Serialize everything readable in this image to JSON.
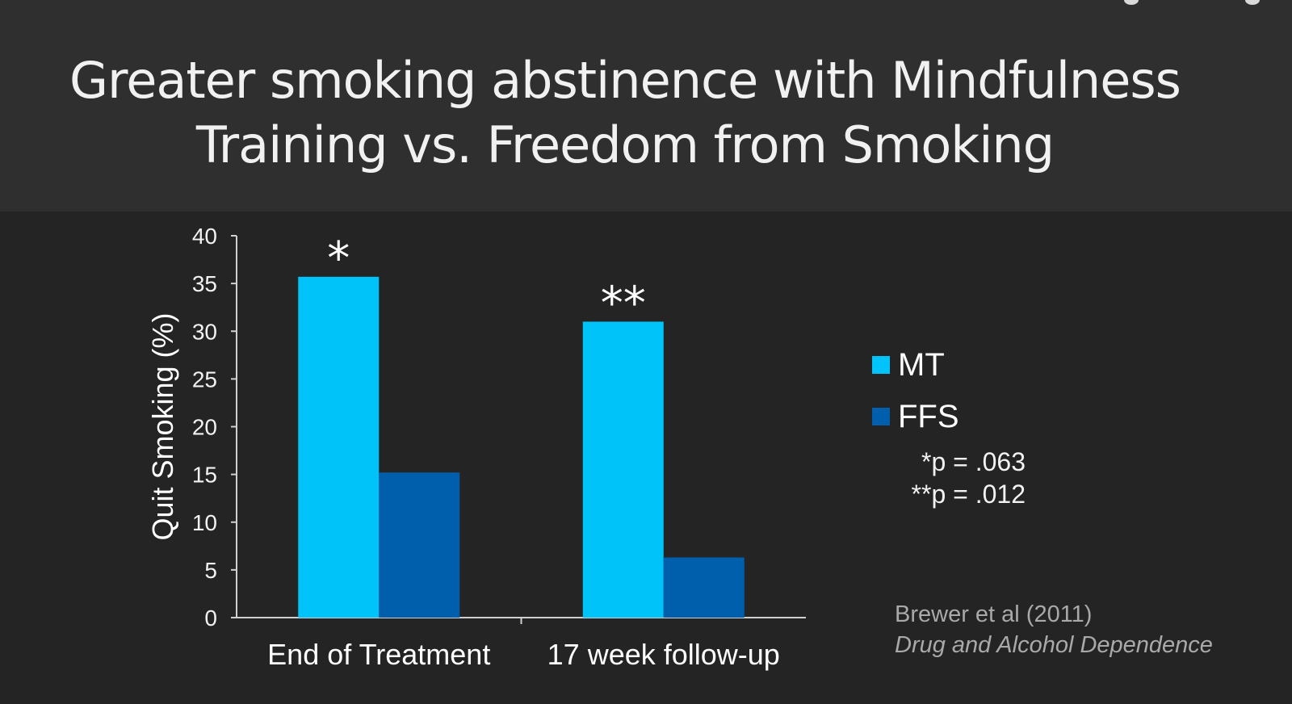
{
  "slide": {
    "title_line1": "Greater smoking abstinence with Mindfulness",
    "title_line2": "Training vs. Freedom from Smoking"
  },
  "colors": {
    "background": "#242424",
    "title_band": "#2f2f2f",
    "mt": "#00c4f9",
    "ffs": "#005fac",
    "axis": "#d0d0d0"
  },
  "chart_data": {
    "type": "bar",
    "ylabel": "Quit Smoking (%)",
    "ylim": [
      0,
      40
    ],
    "yticks": [
      "0",
      "5",
      "10",
      "15",
      "20",
      "25",
      "30",
      "35",
      "40"
    ],
    "categories": [
      "End of Treatment",
      "17 week follow-up"
    ],
    "series": [
      {
        "name": "MT",
        "values": [
          35.7,
          31.0
        ]
      },
      {
        "name": "FFS",
        "values": [
          15.2,
          6.3
        ]
      }
    ],
    "significance_marks": [
      "*",
      "**"
    ],
    "legend_position": "right",
    "grid": false,
    "annotations": [
      "*p = .063",
      "**p = .012"
    ]
  },
  "citation": {
    "authors": "Brewer et al (2011)",
    "journal": "Drug and Alcohol Dependence"
  }
}
